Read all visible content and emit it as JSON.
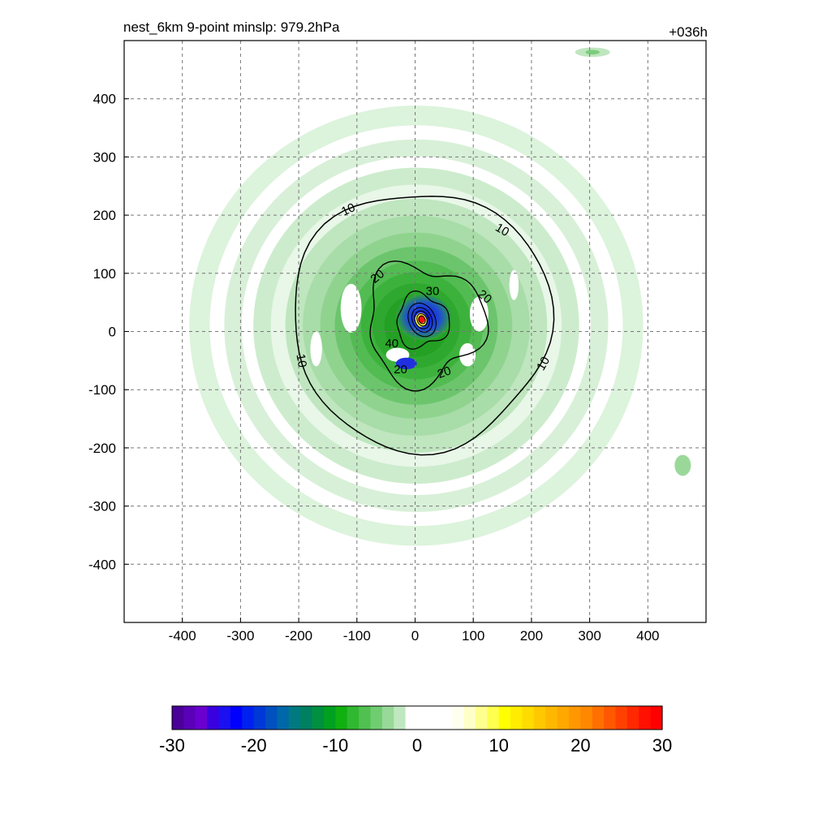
{
  "chart_data": {
    "type": "heatmap",
    "title_left": "nest_6km  9-point minslp: 979.2hPa",
    "title_right": "+036h",
    "xlim": [
      -500,
      500
    ],
    "ylim": [
      -500,
      500
    ],
    "xticks": [
      -400,
      -300,
      -200,
      -100,
      0,
      100,
      200,
      300,
      400
    ],
    "yticks": [
      -400,
      -300,
      -200,
      -100,
      0,
      100,
      200,
      300,
      400
    ],
    "grid": true,
    "colorbar": {
      "range": [
        -30,
        30
      ],
      "ticks": [
        -30,
        -20,
        -10,
        0,
        10,
        20,
        30
      ],
      "colors": [
        "#4a0099",
        "#5a00b8",
        "#6a00d0",
        "#3a00e0",
        "#1a10f0",
        "#0000ff",
        "#0020f0",
        "#0038d8",
        "#0050c0",
        "#0068a8",
        "#007a80",
        "#008060",
        "#009040",
        "#00a020",
        "#10b010",
        "#30b830",
        "#50c050",
        "#70cc70",
        "#98d898",
        "#c0e8c0",
        "#ffffff",
        "#ffffff",
        "#ffffff",
        "#ffffff",
        "#fffff0",
        "#ffffc8",
        "#ffff90",
        "#ffff50",
        "#ffff00",
        "#ffec00",
        "#ffdc00",
        "#ffc800",
        "#ffb800",
        "#ffa800",
        "#ff9800",
        "#ff8800",
        "#ff7000",
        "#ff5800",
        "#ff4000",
        "#ff2800",
        "#ff1000",
        "#ff0000"
      ]
    },
    "contour_labels": [
      "10",
      "10",
      "10",
      "10",
      "20",
      "20",
      "20",
      "20",
      "30",
      "40"
    ],
    "storm_center": [
      10,
      20
    ]
  }
}
